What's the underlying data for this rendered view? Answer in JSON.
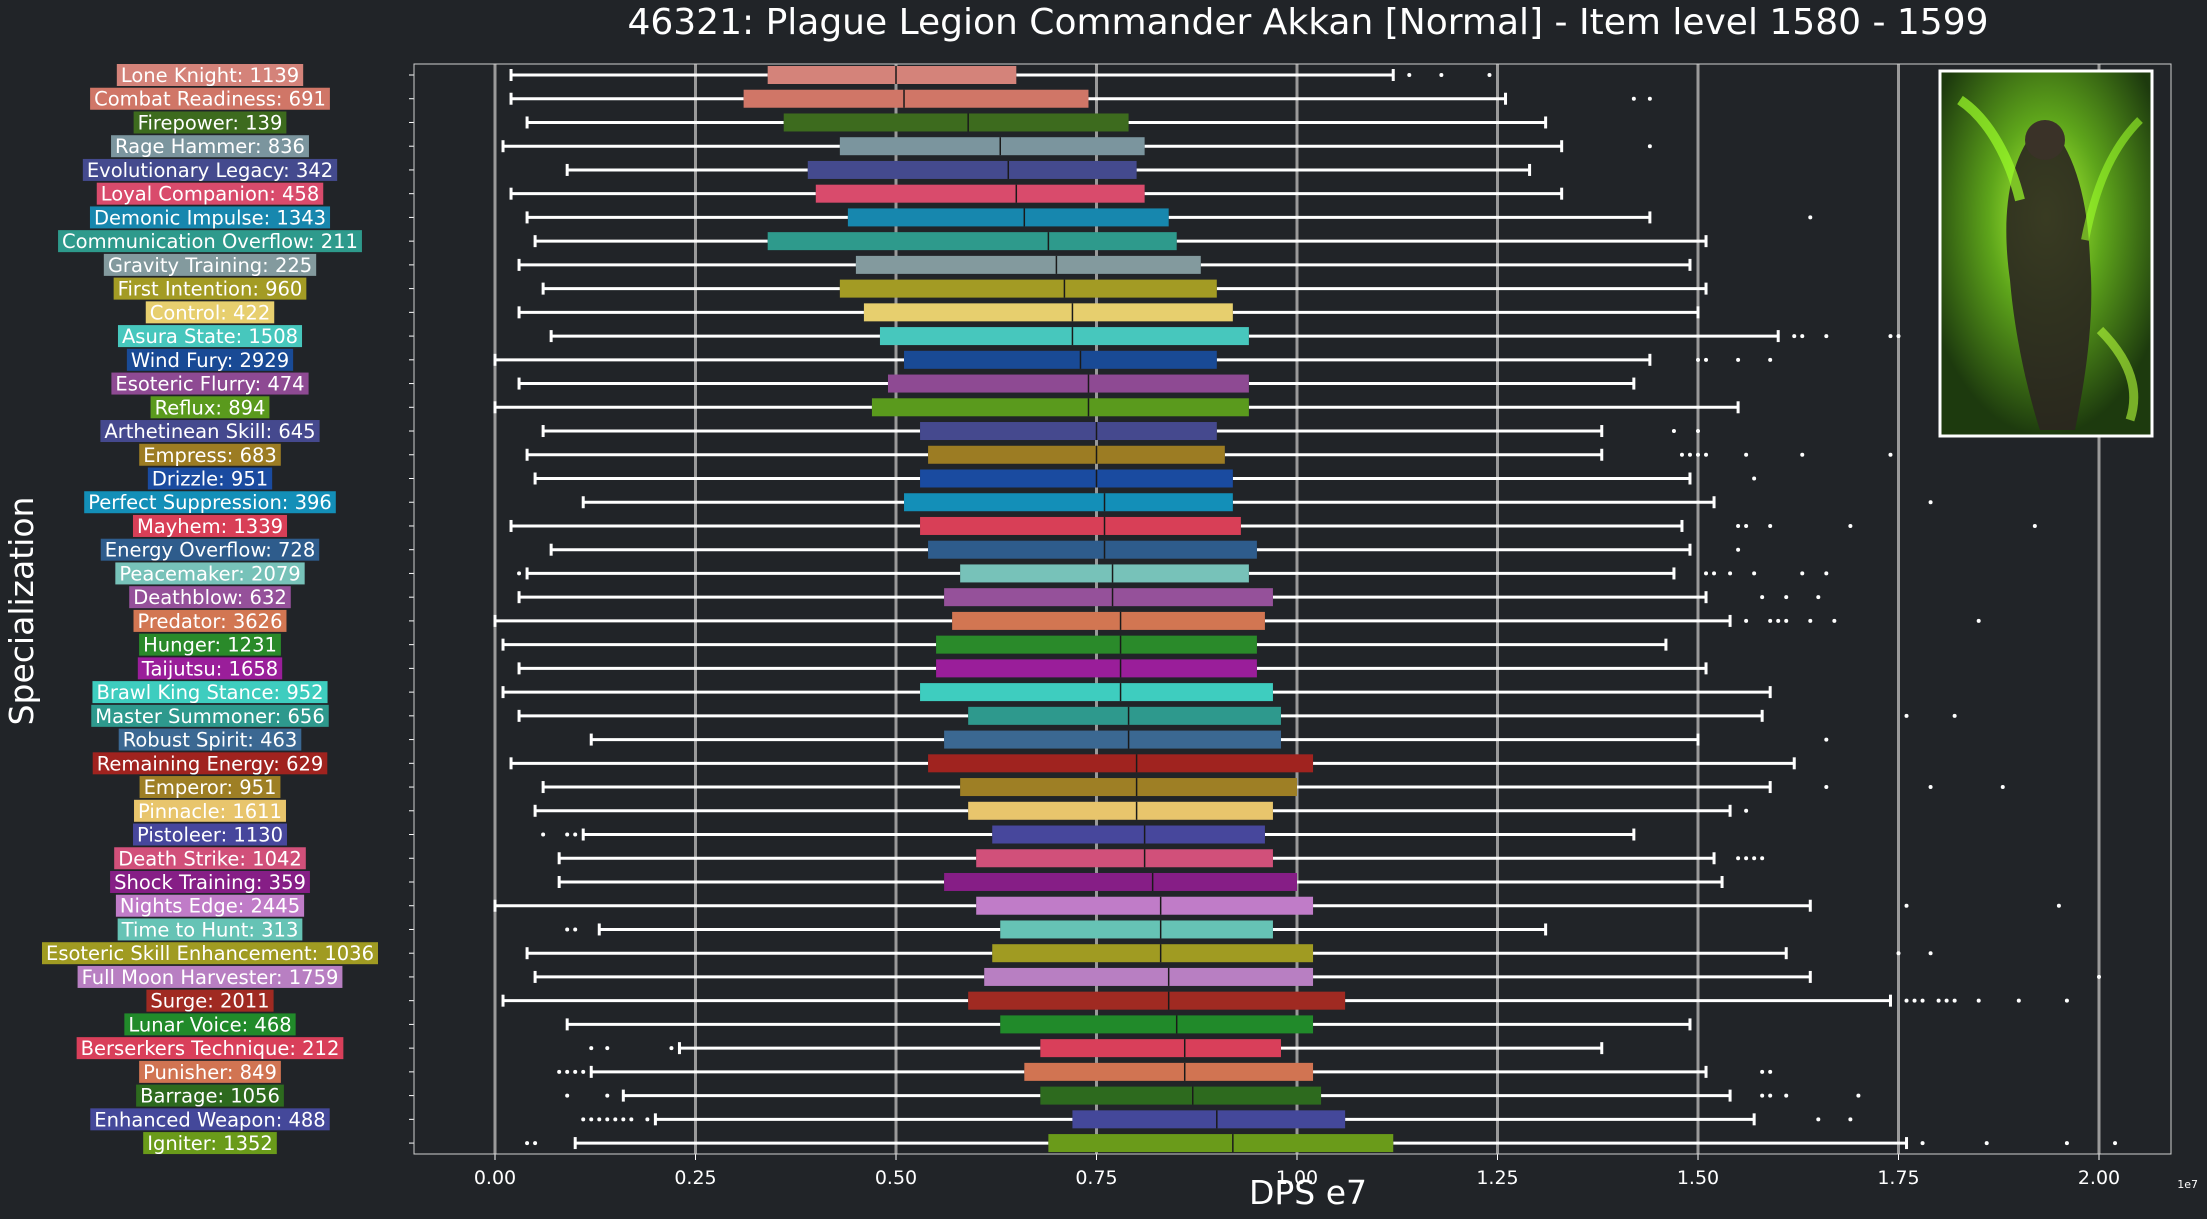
{
  "chart_data": {
    "type": "box",
    "orientation": "horizontal",
    "title": "46321: Plague Legion Commander Akkan [Normal] - Item level 1580 - 1599",
    "xlabel": "DPS e7",
    "ylabel": "Specialization",
    "x_scale_note": "1e7",
    "xlim": [
      -0.1,
      2.1
    ],
    "xticks": [
      0.0,
      0.25,
      0.5,
      0.75,
      1.0,
      1.25,
      1.5,
      1.75,
      2.0
    ],
    "xtick_labels": [
      "0.00",
      "0.25",
      "0.50",
      "0.75",
      "1.00",
      "1.25",
      "1.50",
      "1.75",
      "2.00"
    ],
    "grid": "vertical",
    "series": [
      {
        "label": "Lone Knight: 1139",
        "color": "#D4837A",
        "whisker_low": 0.02,
        "q1": 0.34,
        "median": 0.5,
        "q3": 0.65,
        "whisker_high": 1.12,
        "outliers": [
          1.14,
          1.18,
          1.24
        ]
      },
      {
        "label": "Combat Readiness: 691",
        "color": "#D07667",
        "whisker_low": 0.02,
        "q1": 0.31,
        "median": 0.51,
        "q3": 0.74,
        "whisker_high": 1.26,
        "outliers": [
          1.42,
          1.44
        ]
      },
      {
        "label": "Firepower: 139",
        "color": "#3D6B1E",
        "whisker_low": 0.04,
        "q1": 0.36,
        "median": 0.59,
        "q3": 0.79,
        "whisker_high": 1.31,
        "outliers": []
      },
      {
        "label": "Rage Hammer: 836",
        "color": "#7B959E",
        "whisker_low": 0.01,
        "q1": 0.43,
        "median": 0.63,
        "q3": 0.81,
        "whisker_high": 1.33,
        "outliers": [
          1.44
        ]
      },
      {
        "label": "Evolutionary Legacy: 342",
        "color": "#444A8E",
        "whisker_low": 0.09,
        "q1": 0.39,
        "median": 0.64,
        "q3": 0.8,
        "whisker_high": 1.29,
        "outliers": []
      },
      {
        "label": "Loyal Companion: 458",
        "color": "#D94B6C",
        "whisker_low": 0.02,
        "q1": 0.4,
        "median": 0.65,
        "q3": 0.81,
        "whisker_high": 1.33,
        "outliers": []
      },
      {
        "label": "Demonic Impulse: 1343",
        "color": "#1787AE",
        "whisker_low": 0.04,
        "q1": 0.44,
        "median": 0.66,
        "q3": 0.84,
        "whisker_high": 1.44,
        "outliers": [
          1.64
        ]
      },
      {
        "label": "Communication Overflow: 211",
        "color": "#2E9A8C",
        "whisker_low": 0.05,
        "q1": 0.34,
        "median": 0.69,
        "q3": 0.85,
        "whisker_high": 1.51,
        "outliers": []
      },
      {
        "label": "Gravity Training: 225",
        "color": "#839A9E",
        "whisker_low": 0.03,
        "q1": 0.45,
        "median": 0.7,
        "q3": 0.88,
        "whisker_high": 1.49,
        "outliers": []
      },
      {
        "label": "First Intention: 960",
        "color": "#A39B24",
        "whisker_low": 0.06,
        "q1": 0.43,
        "median": 0.71,
        "q3": 0.9,
        "whisker_high": 1.51,
        "outliers": []
      },
      {
        "label": "Control: 422",
        "color": "#E7CF6E",
        "whisker_low": 0.03,
        "q1": 0.46,
        "median": 0.72,
        "q3": 0.92,
        "whisker_high": 1.5,
        "outliers": []
      },
      {
        "label": "Asura State: 1508",
        "color": "#47C7BD",
        "whisker_low": 0.07,
        "q1": 0.48,
        "median": 0.72,
        "q3": 0.94,
        "whisker_high": 1.6,
        "outliers": [
          1.62,
          1.63,
          1.66,
          1.74,
          1.75
        ]
      },
      {
        "label": "Wind Fury: 2929",
        "color": "#194A95",
        "whisker_low": 0.0,
        "q1": 0.51,
        "median": 0.73,
        "q3": 0.9,
        "whisker_high": 1.44,
        "outliers": [
          1.5,
          1.51,
          1.55,
          1.59
        ]
      },
      {
        "label": "Esoteric Flurry: 474",
        "color": "#8E4A93",
        "whisker_low": 0.03,
        "q1": 0.49,
        "median": 0.74,
        "q3": 0.94,
        "whisker_high": 1.42,
        "outliers": []
      },
      {
        "label": "Reflux: 894",
        "color": "#5A9A1D",
        "whisker_low": 0.0,
        "q1": 0.47,
        "median": 0.74,
        "q3": 0.94,
        "whisker_high": 1.55,
        "outliers": []
      },
      {
        "label": "Arthetinean Skill: 645",
        "color": "#45498E",
        "whisker_low": 0.06,
        "q1": 0.53,
        "median": 0.75,
        "q3": 0.9,
        "whisker_high": 1.38,
        "outliers": [
          1.47,
          1.5
        ]
      },
      {
        "label": "Empress: 683",
        "color": "#9C7C23",
        "whisker_low": 0.04,
        "q1": 0.54,
        "median": 0.75,
        "q3": 0.91,
        "whisker_high": 1.38,
        "outliers": [
          1.48,
          1.49,
          1.5,
          1.51,
          1.56,
          1.63,
          1.74
        ]
      },
      {
        "label": "Drizzle: 951",
        "color": "#1A4BA0",
        "whisker_low": 0.05,
        "q1": 0.53,
        "median": 0.75,
        "q3": 0.92,
        "whisker_high": 1.49,
        "outliers": [
          1.57
        ]
      },
      {
        "label": "Perfect Suppression: 396",
        "color": "#138FB8",
        "whisker_low": 0.11,
        "q1": 0.51,
        "median": 0.76,
        "q3": 0.92,
        "whisker_high": 1.52,
        "outliers": [
          1.79
        ]
      },
      {
        "label": "Mayhem: 1339",
        "color": "#D83F57",
        "whisker_low": 0.02,
        "q1": 0.53,
        "median": 0.76,
        "q3": 0.93,
        "whisker_high": 1.48,
        "outliers": [
          1.55,
          1.56,
          1.59,
          1.69,
          1.92
        ]
      },
      {
        "label": "Energy Overflow: 728",
        "color": "#2E5C8C",
        "whisker_low": 0.07,
        "q1": 0.54,
        "median": 0.76,
        "q3": 0.95,
        "whisker_high": 1.49,
        "outliers": [
          1.55
        ]
      },
      {
        "label": "Peacemaker: 2079",
        "color": "#77C2B9",
        "whisker_low": 0.04,
        "q1": 0.58,
        "median": 0.77,
        "q3": 0.94,
        "whisker_high": 1.47,
        "outliers": [
          0.03,
          1.51,
          1.52,
          1.54,
          1.57,
          1.63,
          1.66
        ]
      },
      {
        "label": "Deathblow: 632",
        "color": "#95519A",
        "whisker_low": 0.03,
        "q1": 0.56,
        "median": 0.77,
        "q3": 0.97,
        "whisker_high": 1.51,
        "outliers": [
          1.58,
          1.61,
          1.65
        ]
      },
      {
        "label": "Predator: 3626",
        "color": "#D27652",
        "whisker_low": 0.0,
        "q1": 0.57,
        "median": 0.78,
        "q3": 0.96,
        "whisker_high": 1.54,
        "outliers": [
          1.56,
          1.59,
          1.6,
          1.61,
          1.64,
          1.67,
          1.85
        ]
      },
      {
        "label": "Hunger: 1231",
        "color": "#2A8A2A",
        "whisker_low": 0.01,
        "q1": 0.55,
        "median": 0.78,
        "q3": 0.95,
        "whisker_high": 1.46,
        "outliers": []
      },
      {
        "label": "Taijutsu: 1658",
        "color": "#9A1E9A",
        "whisker_low": 0.03,
        "q1": 0.55,
        "median": 0.78,
        "q3": 0.95,
        "whisker_high": 1.51,
        "outliers": []
      },
      {
        "label": "Brawl King Stance: 952",
        "color": "#3ECDBF",
        "whisker_low": 0.01,
        "q1": 0.53,
        "median": 0.78,
        "q3": 0.97,
        "whisker_high": 1.59,
        "outliers": []
      },
      {
        "label": "Master Summoner: 656",
        "color": "#2E998D",
        "whisker_low": 0.03,
        "q1": 0.59,
        "median": 0.79,
        "q3": 0.98,
        "whisker_high": 1.58,
        "outliers": [
          1.76,
          1.82
        ]
      },
      {
        "label": "Robust Spirit: 463",
        "color": "#3B6892",
        "whisker_low": 0.12,
        "q1": 0.56,
        "median": 0.79,
        "q3": 0.98,
        "whisker_high": 1.5,
        "outliers": [
          1.66
        ]
      },
      {
        "label": "Remaining Energy: 629",
        "color": "#A0231F",
        "whisker_low": 0.02,
        "q1": 0.54,
        "median": 0.8,
        "q3": 1.02,
        "whisker_high": 1.62,
        "outliers": []
      },
      {
        "label": "Emperor: 951",
        "color": "#9E7F25",
        "whisker_low": 0.06,
        "q1": 0.58,
        "median": 0.8,
        "q3": 1.0,
        "whisker_high": 1.59,
        "outliers": [
          1.66,
          1.79,
          1.88
        ]
      },
      {
        "label": "Pinnacle: 1611",
        "color": "#E8C56C",
        "whisker_low": 0.05,
        "q1": 0.59,
        "median": 0.8,
        "q3": 0.97,
        "whisker_high": 1.54,
        "outliers": [
          1.56
        ]
      },
      {
        "label": "Pistoleer: 1130",
        "color": "#47479C",
        "whisker_low": 0.11,
        "q1": 0.62,
        "median": 0.81,
        "q3": 0.96,
        "whisker_high": 1.42,
        "outliers": [
          0.06,
          0.09,
          0.1
        ]
      },
      {
        "label": "Death Strike: 1042",
        "color": "#D1507A",
        "whisker_low": 0.08,
        "q1": 0.6,
        "median": 0.81,
        "q3": 0.97,
        "whisker_high": 1.52,
        "outliers": [
          1.55,
          1.56,
          1.57,
          1.58
        ]
      },
      {
        "label": "Shock Training: 359",
        "color": "#861E86",
        "whisker_low": 0.08,
        "q1": 0.56,
        "median": 0.82,
        "q3": 1.0,
        "whisker_high": 1.53,
        "outliers": []
      },
      {
        "label": "Nights Edge: 2445",
        "color": "#C07CC8",
        "whisker_low": 0.0,
        "q1": 0.6,
        "median": 0.83,
        "q3": 1.02,
        "whisker_high": 1.64,
        "outliers": [
          1.76,
          1.95
        ]
      },
      {
        "label": "Time to Hunt: 313",
        "color": "#66C3B5",
        "whisker_low": 0.13,
        "q1": 0.63,
        "median": 0.83,
        "q3": 0.97,
        "whisker_high": 1.31,
        "outliers": [
          0.09,
          0.1
        ]
      },
      {
        "label": "Esoteric Skill Enhancement: 1036",
        "color": "#A09B22",
        "whisker_low": 0.04,
        "q1": 0.62,
        "median": 0.83,
        "q3": 1.02,
        "whisker_high": 1.61,
        "outliers": [
          1.75,
          1.79
        ]
      },
      {
        "label": "Full Moon Harvester: 1759",
        "color": "#B87FC2",
        "whisker_low": 0.05,
        "q1": 0.61,
        "median": 0.84,
        "q3": 1.02,
        "whisker_high": 1.64,
        "outliers": [
          2.0
        ]
      },
      {
        "label": "Surge: 2011",
        "color": "#A02A22",
        "whisker_low": 0.01,
        "q1": 0.59,
        "median": 0.84,
        "q3": 1.06,
        "whisker_high": 1.74,
        "outliers": [
          1.76,
          1.77,
          1.78,
          1.8,
          1.81,
          1.82,
          1.85,
          1.9,
          1.96
        ]
      },
      {
        "label": "Lunar Voice: 468",
        "color": "#218A2A",
        "whisker_low": 0.09,
        "q1": 0.63,
        "median": 0.85,
        "q3": 1.02,
        "whisker_high": 1.49,
        "outliers": []
      },
      {
        "label": "Berserkers Technique: 212",
        "color": "#D93F5A",
        "whisker_low": 0.23,
        "q1": 0.68,
        "median": 0.86,
        "q3": 0.98,
        "whisker_high": 1.38,
        "outliers": [
          0.12,
          0.14,
          0.22
        ]
      },
      {
        "label": "Punisher: 849",
        "color": "#D17452",
        "whisker_low": 0.12,
        "q1": 0.66,
        "median": 0.86,
        "q3": 1.02,
        "whisker_high": 1.51,
        "outliers": [
          0.08,
          0.09,
          0.1,
          0.11,
          1.58,
          1.59
        ]
      },
      {
        "label": "Barrage: 1056",
        "color": "#2D6A1E",
        "whisker_low": 0.16,
        "q1": 0.68,
        "median": 0.87,
        "q3": 1.03,
        "whisker_high": 1.54,
        "outliers": [
          0.09,
          0.14,
          1.58,
          1.59,
          1.61,
          1.7
        ]
      },
      {
        "label": "Enhanced Weapon: 488",
        "color": "#44489A",
        "whisker_low": 0.2,
        "q1": 0.72,
        "median": 0.9,
        "q3": 1.06,
        "whisker_high": 1.57,
        "outliers": [
          0.11,
          0.12,
          0.13,
          0.14,
          0.15,
          0.16,
          0.17,
          0.19,
          1.65,
          1.69
        ]
      },
      {
        "label": "Igniter: 1352",
        "color": "#6A9B1A",
        "whisker_low": 0.1,
        "q1": 0.69,
        "median": 0.92,
        "q3": 1.12,
        "whisker_high": 1.76,
        "outliers": [
          0.04,
          0.05,
          1.78,
          1.86,
          1.96,
          2.02
        ]
      }
    ]
  },
  "inset_image": {
    "name": "boss-portrait-akkan"
  }
}
